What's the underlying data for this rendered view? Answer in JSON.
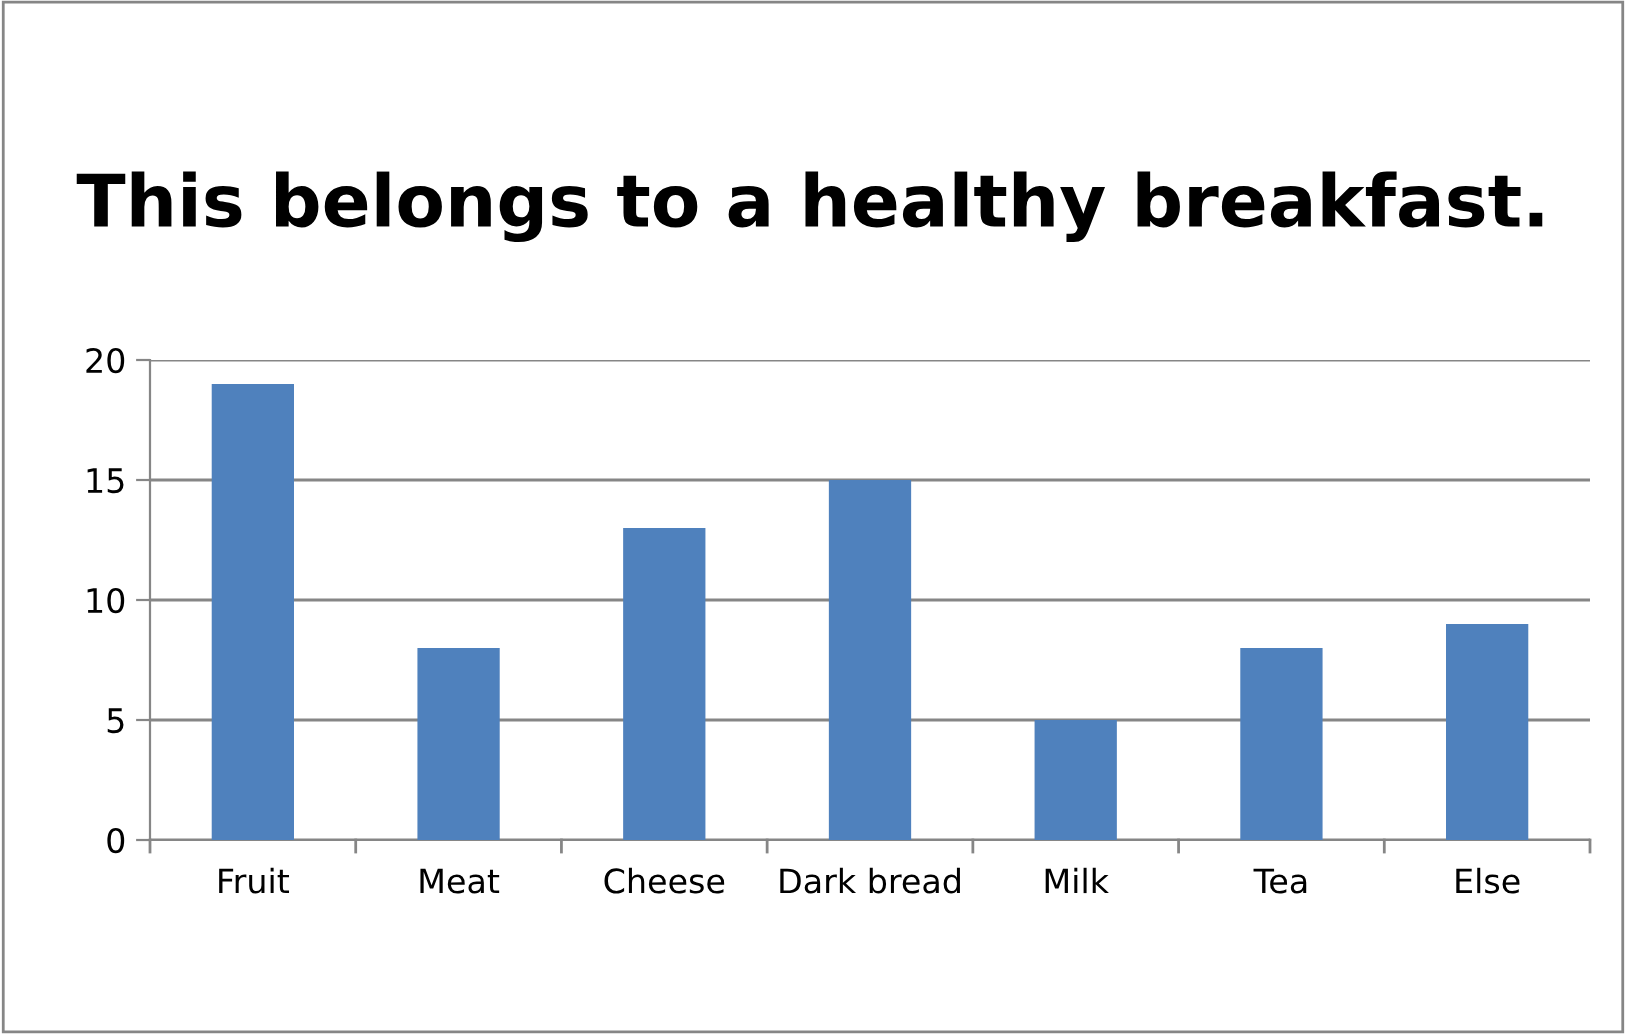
{
  "chart_data": {
    "type": "bar",
    "title": "This belongs to a healthy breakfast.",
    "categories": [
      "Fruit",
      "Meat",
      "Cheese",
      "Dark bread",
      "Milk",
      "Tea",
      "Else"
    ],
    "values": [
      19,
      8,
      13,
      15,
      5,
      8,
      9
    ],
    "color": "#4f81bd",
    "ylim": [
      0,
      20
    ],
    "yticks": [
      0,
      5,
      10,
      15,
      20
    ],
    "grid": "y",
    "legend": false
  }
}
